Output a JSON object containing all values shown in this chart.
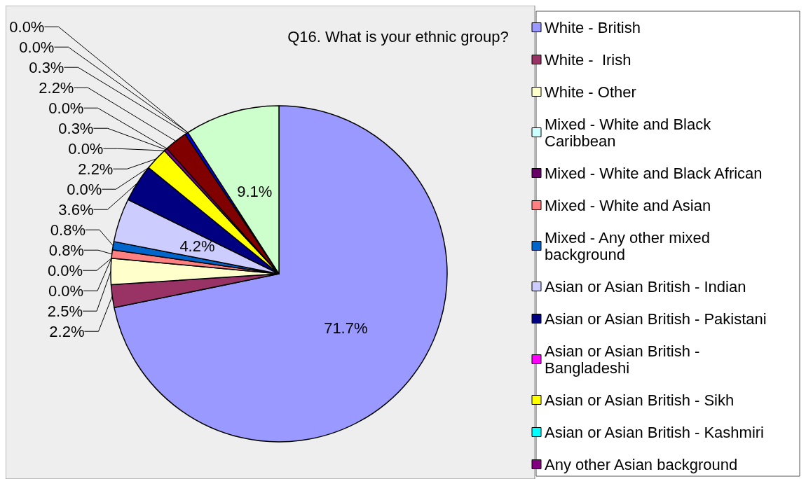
{
  "chart_data": {
    "type": "pie",
    "title": "Q16. What is your ethnic group?",
    "categories": [
      "White - British",
      "White -  Irish",
      "White - Other",
      "Mixed - White and Black Caribbean",
      "Mixed - White and Black African",
      "Mixed - White and Asian",
      "Mixed - Any other mixed background",
      "Asian or Asian British - Indian",
      "Asian or Asian British - Pakistani",
      "Asian or Asian British - Bangladeshi",
      "Asian or Asian British - Sikh",
      "Asian or Asian British - Kashmiri",
      "Any other Asian background",
      null,
      null,
      null,
      null,
      null,
      null
    ],
    "values": [
      71.7,
      2.2,
      2.5,
      0.0,
      0.0,
      0.8,
      0.8,
      4.2,
      3.6,
      0.0,
      2.2,
      0.0,
      0.3,
      0.0,
      2.2,
      0.3,
      0.0,
      0.0,
      9.1
    ],
    "value_labels": [
      "71.7%",
      "2.2%",
      "2.5%",
      "0.0%",
      "0.0%",
      "0.8%",
      "0.8%",
      "4.2%",
      "3.6%",
      "0.0%",
      "2.2%",
      "0.0%",
      "0.3%",
      "0.0%",
      "2.2%",
      "0.3%",
      "0.0%",
      "0.0%",
      "9.1%"
    ],
    "colors": [
      "#9999ff",
      "#993366",
      "#ffffcc",
      "#ccffff",
      "#660066",
      "#ff8080",
      "#0066cc",
      "#ccccff",
      "#000080",
      "#ff00ff",
      "#ffff00",
      "#00ffff",
      "#800080",
      "#800000",
      "#800000",
      "#0000ff",
      "#00ccff",
      "#ccffcc",
      "#ccffcc"
    ],
    "legend": "right"
  }
}
